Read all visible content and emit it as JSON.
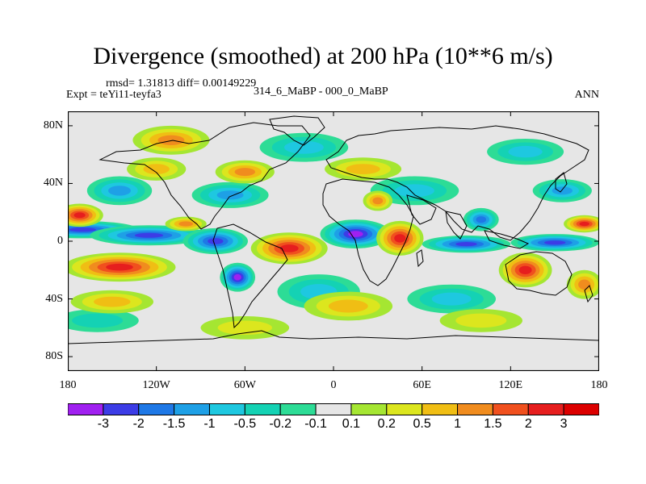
{
  "chart_data": {
    "type": "heatmap",
    "title": "Divergence (smoothed) at 200 hPa (10**6 m/s)",
    "stats_label": "rmsd= 1.31813 diff= 0.00149229",
    "experiment_label": "Expt = teYi11-teyfa3",
    "period_label": "314_6_MaBP - 000_0_MaBP",
    "season_label": "ANN",
    "x_axis": {
      "range": [
        -180,
        180
      ],
      "ticks": [
        -180,
        -120,
        -60,
        0,
        60,
        120,
        180
      ],
      "tick_labels": [
        "180",
        "120W",
        "60W",
        "0",
        "60E",
        "120E",
        "180"
      ]
    },
    "y_axis": {
      "range": [
        -90,
        90
      ],
      "ticks": [
        80,
        40,
        0,
        -40,
        -80
      ],
      "tick_labels": [
        "80N",
        "40N",
        "0",
        "40S",
        "80S"
      ]
    },
    "colorbar": {
      "levels": [
        -3,
        -2,
        -1.5,
        -1,
        -0.5,
        -0.2,
        -0.1,
        0.1,
        0.2,
        0.5,
        1,
        1.5,
        2,
        3
      ],
      "labels": [
        "-3",
        "-2",
        "-1.5",
        "-1",
        "-0.5",
        "-0.2",
        "-0.1",
        "0.1",
        "0.2",
        "0.5",
        "1",
        "1.5",
        "2",
        "3"
      ],
      "colors": [
        "#a020f0",
        "#3c3ce6",
        "#1e78e6",
        "#1ea0e6",
        "#1ec8e0",
        "#14d2b4",
        "#2ddc96",
        "#e6e6e6",
        "#a5e632",
        "#dce61e",
        "#f0be14",
        "#f08c1e",
        "#f0501e",
        "#e61e1e",
        "#dc0000"
      ]
    },
    "field_features": [
      {
        "lon": -170,
        "lat": 8,
        "value": -2.2,
        "rx": 38,
        "ry": 6
      },
      {
        "lon": -125,
        "lat": 4,
        "value": -2.5,
        "rx": 40,
        "ry": 7
      },
      {
        "lon": -80,
        "lat": 0,
        "value": -2.8,
        "rx": 22,
        "ry": 9
      },
      {
        "lon": -65,
        "lat": -25,
        "value": -3.0,
        "rx": 12,
        "ry": 10
      },
      {
        "lon": 15,
        "lat": 5,
        "value": -3.0,
        "rx": 24,
        "ry": 10
      },
      {
        "lon": 90,
        "lat": -2,
        "value": -2.0,
        "rx": 30,
        "ry": 6
      },
      {
        "lon": 150,
        "lat": -1,
        "value": -2.8,
        "rx": 30,
        "ry": 6
      },
      {
        "lon": 100,
        "lat": 15,
        "value": -1.8,
        "rx": 12,
        "ry": 8
      },
      {
        "lon": -145,
        "lat": 35,
        "value": -1.0,
        "rx": 22,
        "ry": 10
      },
      {
        "lon": -70,
        "lat": 32,
        "value": -1.0,
        "rx": 26,
        "ry": 9
      },
      {
        "lon": 155,
        "lat": 35,
        "value": -1.2,
        "rx": 20,
        "ry": 8
      },
      {
        "lon": 55,
        "lat": 35,
        "value": -0.6,
        "rx": 30,
        "ry": 10
      },
      {
        "lon": -10,
        "lat": -35,
        "value": -0.6,
        "rx": 28,
        "ry": 12
      },
      {
        "lon": 80,
        "lat": -40,
        "value": -0.5,
        "rx": 30,
        "ry": 10
      },
      {
        "lon": -20,
        "lat": 65,
        "value": -0.5,
        "rx": 30,
        "ry": 10
      },
      {
        "lon": 130,
        "lat": 62,
        "value": -0.5,
        "rx": 26,
        "ry": 9
      },
      {
        "lon": -160,
        "lat": -55,
        "value": -0.4,
        "rx": 28,
        "ry": 8
      },
      {
        "lon": -145,
        "lat": -18,
        "value": 2.6,
        "rx": 38,
        "ry": 10
      },
      {
        "lon": -172,
        "lat": 18,
        "value": 2.2,
        "rx": 16,
        "ry": 8
      },
      {
        "lon": -30,
        "lat": -5,
        "value": 2.6,
        "rx": 26,
        "ry": 11
      },
      {
        "lon": 45,
        "lat": 2,
        "value": 2.4,
        "rx": 16,
        "ry": 12
      },
      {
        "lon": 130,
        "lat": -20,
        "value": 2.3,
        "rx": 18,
        "ry": 12
      },
      {
        "lon": 170,
        "lat": 12,
        "value": 2.0,
        "rx": 14,
        "ry": 6
      },
      {
        "lon": -60,
        "lat": 48,
        "value": 1.2,
        "rx": 20,
        "ry": 8
      },
      {
        "lon": -100,
        "lat": 12,
        "value": 1.2,
        "rx": 14,
        "ry": 5
      },
      {
        "lon": 30,
        "lat": 28,
        "value": 1.4,
        "rx": 10,
        "ry": 7
      },
      {
        "lon": 170,
        "lat": -30,
        "value": 1.3,
        "rx": 12,
        "ry": 10
      },
      {
        "lon": -110,
        "lat": 70,
        "value": 1.0,
        "rx": 26,
        "ry": 10
      },
      {
        "lon": 20,
        "lat": 50,
        "value": 0.9,
        "rx": 26,
        "ry": 8
      },
      {
        "lon": -120,
        "lat": 50,
        "value": 0.8,
        "rx": 20,
        "ry": 8
      },
      {
        "lon": -150,
        "lat": -42,
        "value": 0.6,
        "rx": 28,
        "ry": 8
      },
      {
        "lon": 10,
        "lat": -45,
        "value": 0.5,
        "rx": 30,
        "ry": 10
      },
      {
        "lon": 100,
        "lat": -55,
        "value": 0.4,
        "rx": 28,
        "ry": 8
      },
      {
        "lon": -60,
        "lat": -60,
        "value": 0.3,
        "rx": 30,
        "ry": 8
      }
    ]
  }
}
